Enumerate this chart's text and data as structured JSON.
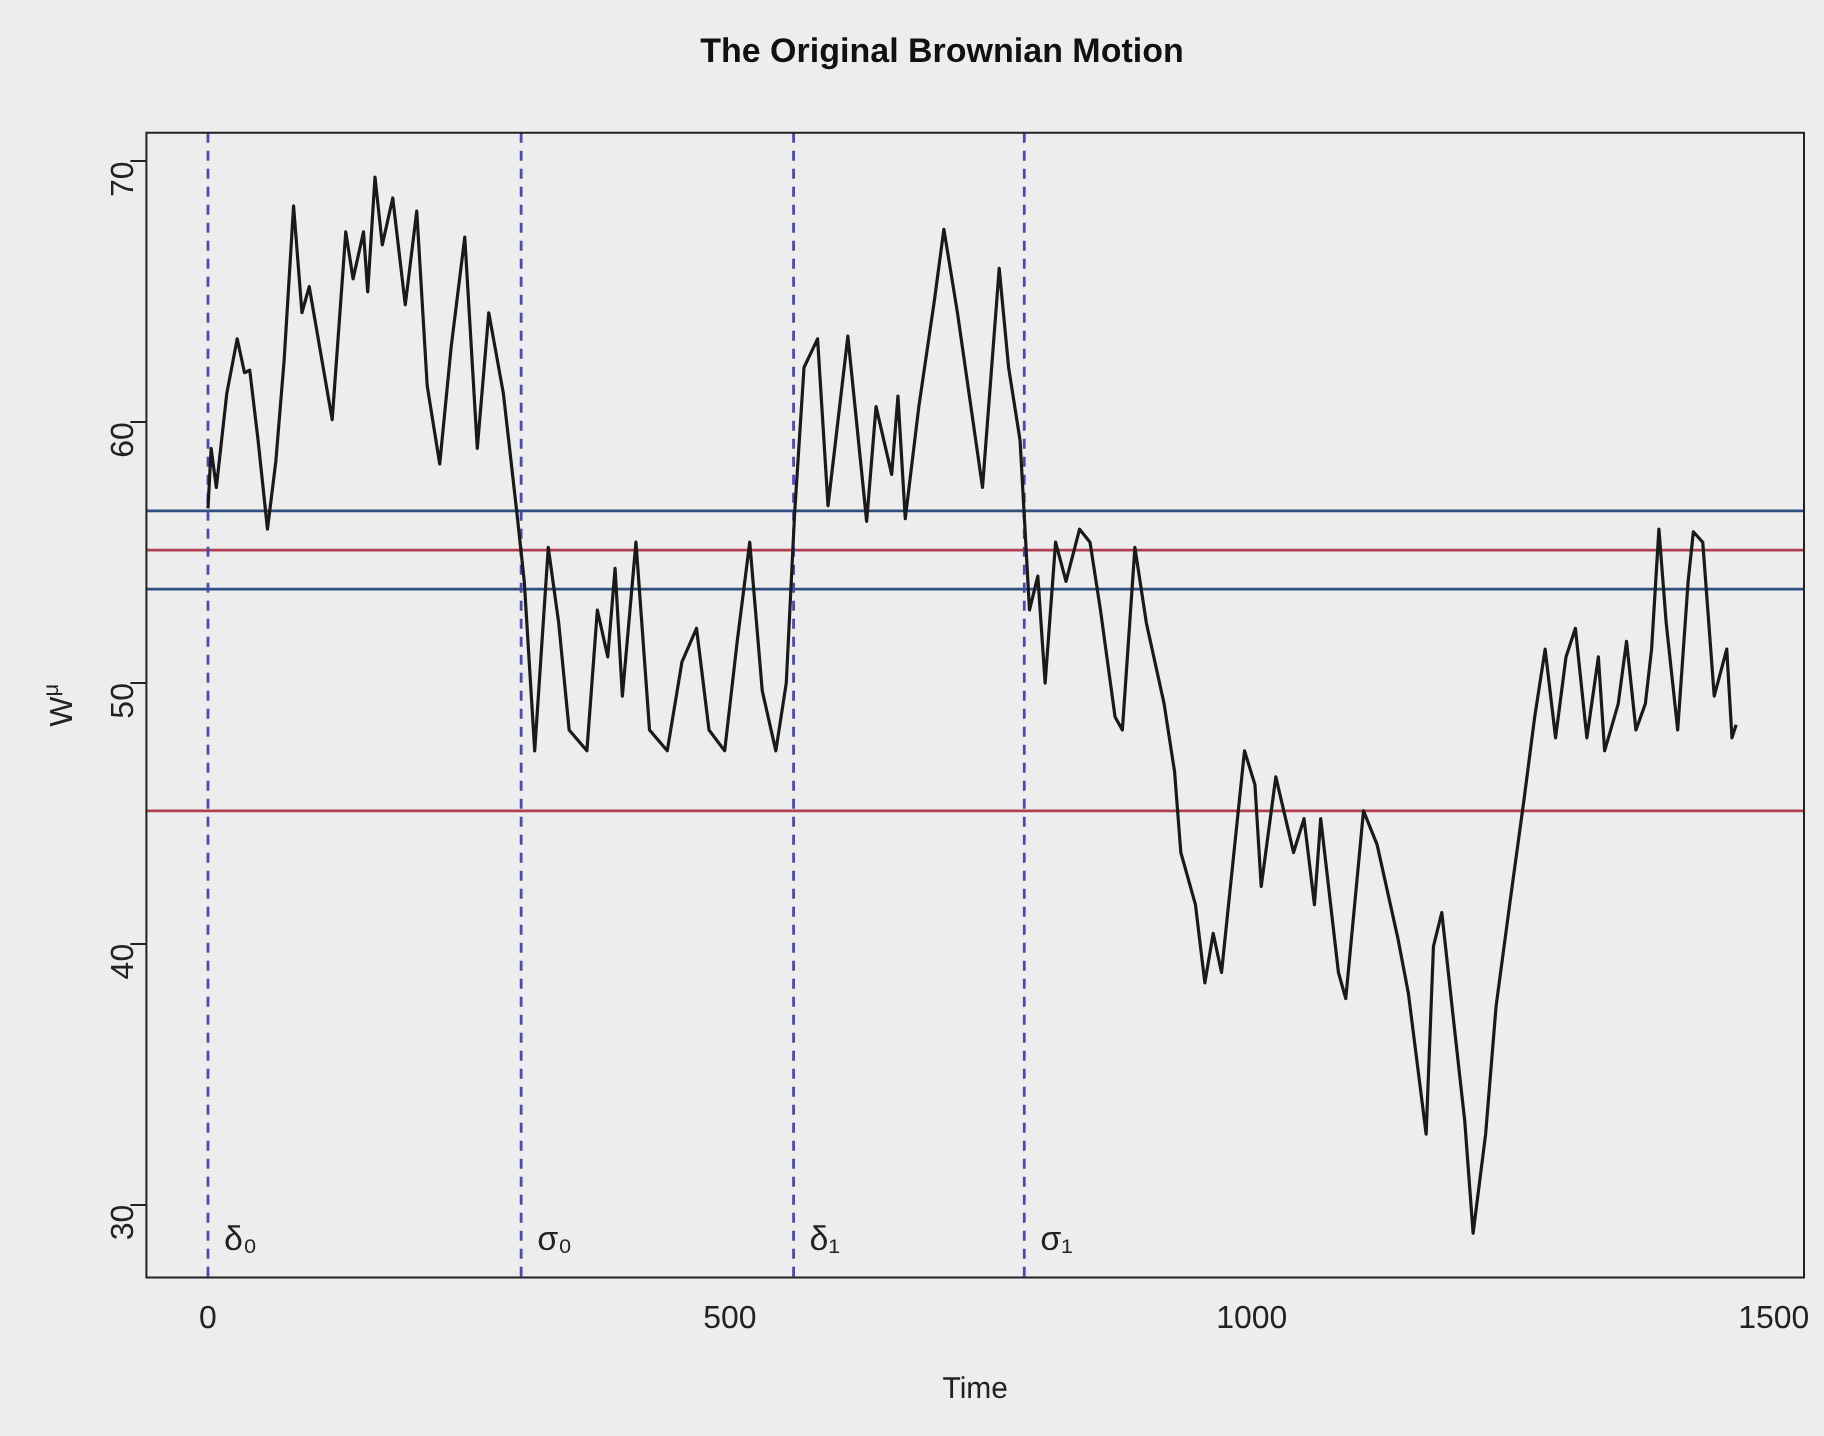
{
  "chart_data": {
    "type": "line",
    "title": "The Original Brownian Motion",
    "xlabel": "Time",
    "ylabel": "W$^{μ}$",
    "xlim": [
      -59,
      1529
    ],
    "ylim": [
      27.2,
      71.1
    ],
    "xticks": [
      0,
      500,
      1000,
      1500
    ],
    "yticks": [
      30,
      40,
      50,
      60,
      70
    ],
    "grid": false,
    "legend": false,
    "marker": "none",
    "line_style": "solid",
    "series": [
      {
        "color": "#1a1a1a",
        "x": [
          0,
          3,
          8,
          18,
          28,
          35,
          40,
          48,
          57,
          65,
          73,
          82,
          90,
          97,
          119,
          132,
          139,
          149,
          153,
          160,
          167,
          177,
          189,
          200,
          210,
          222,
          233,
          246,
          258,
          269,
          283,
          296,
          303,
          313,
          326,
          336,
          346,
          363,
          373,
          383,
          390,
          397,
          410,
          423,
          440,
          454,
          468,
          480,
          495,
          507,
          519,
          531,
          544,
          554,
          562,
          571,
          584,
          594,
          613,
          631,
          640,
          655,
          661,
          668,
          681,
          696,
          705,
          718,
          742,
          758,
          767,
          778,
          787,
          795,
          802,
          812,
          822,
          835,
          845,
          855,
          869,
          876,
          888,
          899,
          916,
          926,
          932,
          946,
          955,
          963,
          971,
          979,
          993,
          1003,
          1009,
          1023,
          1040,
          1050,
          1060,
          1066,
          1083,
          1090,
          1107,
          1120,
          1140,
          1150,
          1167,
          1174,
          1182,
          1194,
          1204,
          1212,
          1224,
          1234,
          1247,
          1261,
          1271,
          1281,
          1291,
          1301,
          1310,
          1321,
          1332,
          1338,
          1351,
          1359,
          1368,
          1377,
          1383,
          1390,
          1397,
          1408,
          1418,
          1423,
          1432,
          1443,
          1455,
          1460,
          1464
        ],
        "values": [
          56.7,
          59.0,
          57.5,
          61.1,
          63.2,
          61.9,
          62.0,
          59.3,
          55.9,
          58.5,
          62.4,
          68.3,
          64.2,
          65.2,
          60.1,
          67.3,
          65.5,
          67.3,
          65.0,
          69.4,
          66.8,
          68.6,
          64.5,
          68.1,
          61.4,
          58.4,
          62.9,
          67.1,
          59.0,
          64.2,
          61.1,
          56.5,
          53.9,
          47.4,
          55.2,
          52.3,
          48.2,
          47.4,
          52.8,
          51.0,
          54.4,
          49.5,
          55.4,
          48.2,
          47.4,
          50.8,
          52.1,
          48.2,
          47.4,
          51.6,
          55.4,
          49.7,
          47.4,
          50.0,
          56.5,
          62.1,
          63.2,
          56.8,
          63.3,
          56.2,
          60.6,
          58.0,
          61.0,
          56.3,
          60.6,
          64.7,
          67.4,
          64.2,
          57.5,
          65.9,
          62.1,
          59.3,
          52.8,
          54.1,
          50.0,
          55.4,
          53.9,
          55.9,
          55.4,
          52.8,
          48.7,
          48.2,
          55.2,
          52.3,
          49.2,
          46.6,
          43.5,
          41.5,
          38.5,
          40.4,
          38.9,
          42.0,
          47.4,
          46.1,
          42.2,
          46.4,
          43.5,
          44.8,
          41.5,
          44.8,
          38.9,
          37.9,
          45.1,
          43.8,
          40.2,
          38.1,
          32.7,
          39.9,
          41.2,
          36.8,
          33.2,
          28.9,
          32.7,
          37.6,
          41.5,
          45.6,
          48.7,
          51.3,
          47.9,
          51.0,
          52.1,
          47.9,
          51.0,
          47.4,
          49.2,
          51.6,
          48.2,
          49.2,
          51.3,
          55.9,
          52.3,
          48.2,
          53.9,
          55.8,
          55.4,
          49.5,
          51.3,
          47.9,
          48.4
        ]
      }
    ],
    "ref_lines": [
      {
        "axis": "y",
        "value": 56.6,
        "color": "#2f4f7f",
        "line_style": "solid"
      },
      {
        "axis": "y",
        "value": 55.1,
        "color": "#b0404f",
        "line_style": "solid"
      },
      {
        "axis": "y",
        "value": 53.6,
        "color": "#2f4f7f",
        "line_style": "solid"
      },
      {
        "axis": "y",
        "value": 45.1,
        "color": "#b0404f",
        "line_style": "solid"
      },
      {
        "axis": "x",
        "value": 0,
        "label": "δ₀",
        "color": "#4a4ab0",
        "line_style": "dashed"
      },
      {
        "axis": "x",
        "value": 300,
        "label": "σ₀",
        "color": "#4a4ab0",
        "line_style": "dashed"
      },
      {
        "axis": "x",
        "value": 561,
        "label": "δ₁",
        "color": "#4a4ab0",
        "line_style": "dashed"
      },
      {
        "axis": "x",
        "value": 782,
        "label": "σ₁",
        "color": "#4a4ab0",
        "line_style": "dashed"
      }
    ]
  }
}
